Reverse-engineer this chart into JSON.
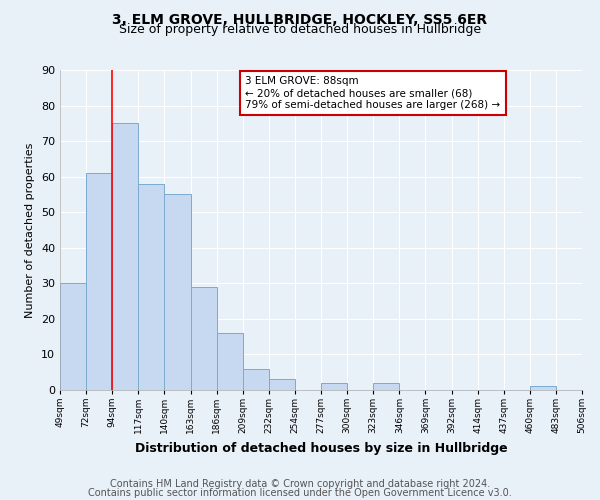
{
  "title": "3, ELM GROVE, HULLBRIDGE, HOCKLEY, SS5 6ER",
  "subtitle": "Size of property relative to detached houses in Hullbridge",
  "xlabel": "Distribution of detached houses by size in Hullbridge",
  "ylabel": "Number of detached properties",
  "bar_values": [
    30,
    61,
    75,
    58,
    55,
    29,
    16,
    6,
    3,
    0,
    2,
    0,
    2,
    0,
    0,
    0,
    0,
    0,
    1,
    0
  ],
  "bar_labels": [
    "49sqm",
    "72sqm",
    "94sqm",
    "117sqm",
    "140sqm",
    "163sqm",
    "186sqm",
    "209sqm",
    "232sqm",
    "254sqm",
    "277sqm",
    "300sqm",
    "323sqm",
    "346sqm",
    "369sqm",
    "392sqm",
    "414sqm",
    "437sqm",
    "460sqm",
    "483sqm",
    "506sqm"
  ],
  "bar_color": "#c6d9f0",
  "bar_edge_color": "#7aabcf",
  "red_line_x": 2,
  "ylim": [
    0,
    90
  ],
  "yticks": [
    0,
    10,
    20,
    30,
    40,
    50,
    60,
    70,
    80,
    90
  ],
  "annotation_box_text": "3 ELM GROVE: 88sqm\n← 20% of detached houses are smaller (68)\n79% of semi-detached houses are larger (268) →",
  "annotation_box_color": "#ffffff",
  "annotation_box_edge_color": "#cc0000",
  "footer_line1": "Contains HM Land Registry data © Crown copyright and database right 2024.",
  "footer_line2": "Contains public sector information licensed under the Open Government Licence v3.0.",
  "background_color": "#e8f0f8",
  "plot_bg_color": "#e8f0f8",
  "grid_color": "#ffffff",
  "title_fontsize": 10,
  "subtitle_fontsize": 9,
  "footer_fontsize": 7
}
